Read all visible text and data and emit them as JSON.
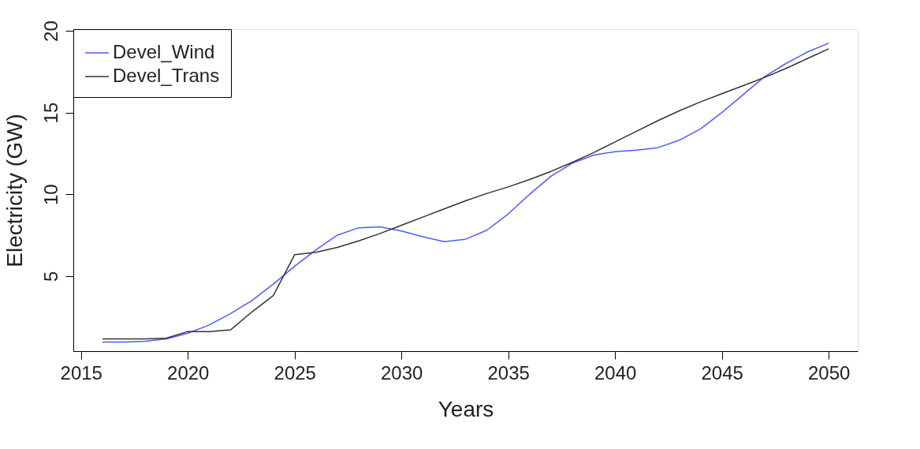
{
  "chart_data": {
    "type": "line",
    "xlabel": "Years",
    "ylabel": "Electricity (GW)",
    "x": [
      2016,
      2017,
      2018,
      2019,
      2020,
      2021,
      2022,
      2023,
      2024,
      2025,
      2026,
      2027,
      2028,
      2029,
      2030,
      2031,
      2032,
      2033,
      2034,
      2035,
      2036,
      2037,
      2038,
      2039,
      2040,
      2041,
      2042,
      2043,
      2044,
      2045,
      2046,
      2047,
      2048,
      2049,
      2050
    ],
    "series": [
      {
        "name": "Devel_Wind",
        "color": "#4d5cff",
        "values": [
          0.95,
          0.95,
          1.0,
          1.15,
          1.5,
          2.0,
          2.7,
          3.5,
          4.5,
          5.6,
          6.6,
          7.5,
          7.95,
          8.0,
          7.75,
          7.4,
          7.1,
          7.25,
          7.8,
          8.8,
          10.0,
          11.1,
          11.9,
          12.4,
          12.6,
          12.7,
          12.85,
          13.3,
          14.0,
          15.0,
          16.1,
          17.2,
          18.0,
          18.7,
          19.25
        ]
      },
      {
        "name": "Devel_Trans",
        "color": "#333333",
        "values": [
          1.15,
          1.15,
          1.15,
          1.2,
          1.6,
          1.6,
          1.7,
          2.8,
          3.8,
          6.3,
          6.45,
          6.75,
          7.15,
          7.6,
          8.1,
          8.6,
          9.1,
          9.6,
          10.05,
          10.45,
          10.9,
          11.4,
          11.95,
          12.55,
          13.2,
          13.85,
          14.5,
          15.1,
          15.65,
          16.15,
          16.65,
          17.15,
          17.7,
          18.3,
          18.9
        ]
      }
    ],
    "xlim": [
      2014.64,
      2051.36
    ],
    "xticks": [
      2015,
      2020,
      2025,
      2030,
      2035,
      2040,
      2045,
      2050
    ],
    "ylim": [
      0.4,
      20.1
    ],
    "yticks": [
      5,
      10,
      15,
      20
    ],
    "grid": false,
    "legend": "top left",
    "marker": "none",
    "line_style": "solid"
  }
}
